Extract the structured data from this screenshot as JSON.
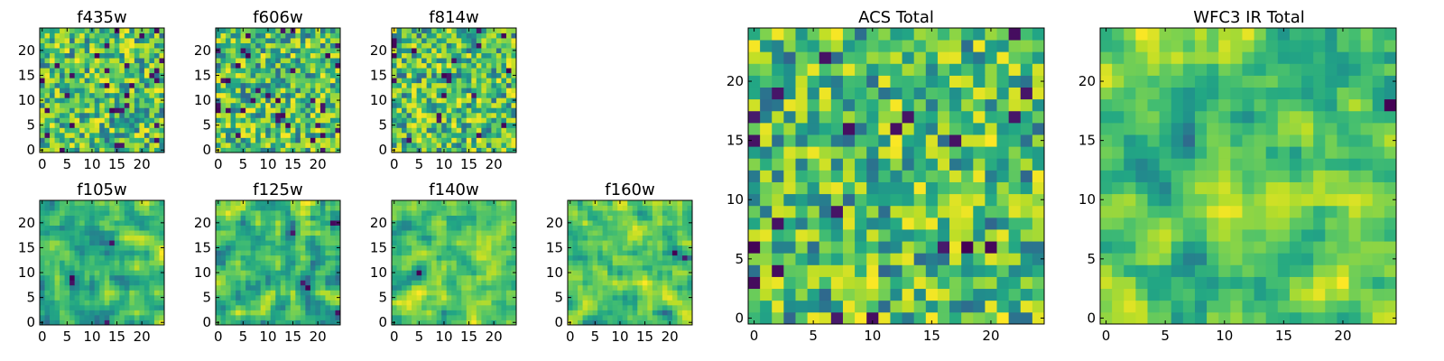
{
  "chart_data": [
    {
      "type": "heatmap",
      "title": "f435w",
      "xticks": [
        "0",
        "5",
        "10",
        "15",
        "20"
      ],
      "yticks": [
        "0",
        "5",
        "10",
        "15",
        "20"
      ],
      "xlim": [
        -0.5,
        24.5
      ],
      "ylim": [
        -0.5,
        24.5
      ],
      "grid_size": 25,
      "colormap": "viridis",
      "texture": "noise"
    },
    {
      "type": "heatmap",
      "title": "f606w",
      "xticks": [
        "0",
        "5",
        "10",
        "15",
        "20"
      ],
      "yticks": [
        "0",
        "5",
        "10",
        "15",
        "20"
      ],
      "xlim": [
        -0.5,
        24.5
      ],
      "ylim": [
        -0.5,
        24.5
      ],
      "grid_size": 25,
      "colormap": "viridis",
      "texture": "noise"
    },
    {
      "type": "heatmap",
      "title": "f814w",
      "xticks": [
        "0",
        "5",
        "10",
        "15",
        "20"
      ],
      "yticks": [
        "0",
        "5",
        "10",
        "15",
        "20"
      ],
      "xlim": [
        -0.5,
        24.5
      ],
      "ylim": [
        -0.5,
        24.5
      ],
      "grid_size": 25,
      "colormap": "viridis",
      "texture": "noise"
    },
    {
      "type": "heatmap",
      "title": "f105w",
      "xticks": [
        "0",
        "5",
        "10",
        "15",
        "20"
      ],
      "yticks": [
        "0",
        "5",
        "10",
        "15",
        "20"
      ],
      "xlim": [
        -0.5,
        24.5
      ],
      "ylim": [
        -0.5,
        24.5
      ],
      "grid_size": 25,
      "colormap": "viridis",
      "texture": "smooth"
    },
    {
      "type": "heatmap",
      "title": "f125w",
      "xticks": [
        "0",
        "5",
        "10",
        "15",
        "20"
      ],
      "yticks": [
        "0",
        "5",
        "10",
        "15",
        "20"
      ],
      "xlim": [
        -0.5,
        24.5
      ],
      "ylim": [
        -0.5,
        24.5
      ],
      "grid_size": 25,
      "colormap": "viridis",
      "texture": "smooth"
    },
    {
      "type": "heatmap",
      "title": "f140w",
      "xticks": [
        "0",
        "5",
        "10",
        "15",
        "20"
      ],
      "yticks": [
        "0",
        "5",
        "10",
        "15",
        "20"
      ],
      "xlim": [
        -0.5,
        24.5
      ],
      "ylim": [
        -0.5,
        24.5
      ],
      "grid_size": 25,
      "colormap": "viridis",
      "texture": "smooth"
    },
    {
      "type": "heatmap",
      "title": "f160w",
      "xticks": [
        "0",
        "5",
        "10",
        "15",
        "20"
      ],
      "yticks": [
        "0",
        "5",
        "10",
        "15",
        "20"
      ],
      "xlim": [
        -0.5,
        24.5
      ],
      "ylim": [
        -0.5,
        24.5
      ],
      "grid_size": 25,
      "colormap": "viridis",
      "texture": "smooth"
    },
    {
      "type": "heatmap",
      "title": "ACS Total",
      "xticks": [
        "0",
        "5",
        "10",
        "15",
        "20"
      ],
      "yticks": [
        "0",
        "5",
        "10",
        "15",
        "20"
      ],
      "xlim": [
        -0.5,
        24.5
      ],
      "ylim": [
        -0.5,
        24.5
      ],
      "grid_size": 25,
      "colormap": "viridis",
      "texture": "noise"
    },
    {
      "type": "heatmap",
      "title": "WFC3 IR Total",
      "xticks": [
        "0",
        "5",
        "10",
        "15",
        "20"
      ],
      "yticks": [
        "0",
        "5",
        "10",
        "15",
        "20"
      ],
      "xlim": [
        -0.5,
        24.5
      ],
      "ylim": [
        -0.5,
        24.5
      ],
      "grid_size": 25,
      "colormap": "viridis",
      "texture": "smooth"
    }
  ]
}
